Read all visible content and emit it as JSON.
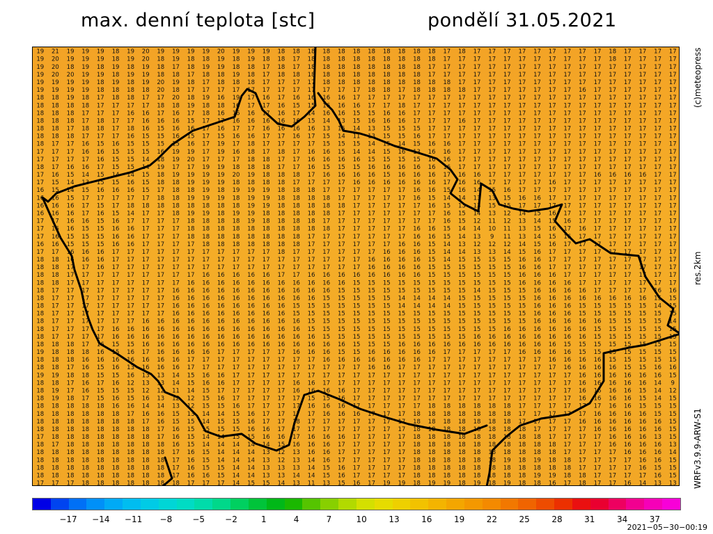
{
  "header": {
    "title": "max. denní teplota [stc]",
    "date": "pondělí 31.05.2021"
  },
  "side_labels": {
    "copyright": "(c)meteopress",
    "resolution": "res.2km",
    "model": "WRFv3.9.9-ARW-S1"
  },
  "map": {
    "region": "Czech Republic",
    "background_color": "#f3a727",
    "value_grid_rows": [
      "19 21 19 19 19 18 19 20 19 19 19 19 20 19 19 19 18 18 18 18 18 18 18 18 18 18 18 17 18 17 17 17 17 17 17 17 17 17 18 17 17 17 17",
      "19 20 19 19 19 18 19 20 18 19 18 18 19 18 19 18 18 17 18 18 18 18 18 18 18 18 18 17 17 17 17 17 17 17 17 17 17 17 18 17 17 17 17",
      "19 20 18 19 18 19 18 19 18 17 18 19 19 18 18 17 18 17 18 18 18 18 18 18 18 18 17 17 17 17 17 17 17 17 17 17 17 17 17 17 17 17 17",
      "19 20 20 19 19 18 19 19 18 18 17 18 18 19 18 17 18 18 18 18 18 18 18 18 18 18 17 17 17 17 17 17 17 17 17 17 17 17 17 17 17 17 17",
      "19 19 19 19 18 19 18 19 20 19 18 17 18 18 18 17 17 17 17 18 18 18 18 18 18 18 18 18 17 17 17 17 17 17 17 17 17 17 17 17 17 17 17",
      "19 19 19 19 18 18 18 18 20 18 17 17 17 17 17 17 17 17 17 17 17 17 18 18 17 18 18 18 18 17 17 17 17 17 17 17 16 17 17 17 17 17 17",
      "18 18 19 18 17 18 18 17 17 20 18 19 16 19 17 16 17 16 16 16 16 17 17 17 17 17 17 17 17 17 17 17 17 17 17 17 17 17 17 17 17 17 17",
      "18 18 18 18 17 17 17 17 18 18 19 18 18 16 17 17 16 15 15 16 16 16 17 17 18 17 17 17 17 17 17 17 17 17 17 17 17 17 17 17 17 17 17",
      "18 18 18 17 17 17 16 16 17 16 17 18 16 16 16 17 16 17 14 16 16 15 15 16 16 17 17 17 17 17 17 17 17 17 17 17 17 17 17 17 17 17 17",
      "18 18 18 17 18 17 17 16 16 16 15 17 17 16 16 16 16 16 15 14 13 15 16 16 16 17 17 17 16 17 17 17 17 17 17 17 17 17 17 17 17 17 17",
      "18 18 17 18 18 17 18 16 15 16 16 17 16 17 17 16 16 16 16 13 15 14 13 15 15 15 17 17 17 17 17 17 17 17 17 17 17 17 17 17 17 17 17",
      "18 18 18 17 17 17 16 15 15 16 15 17 15 16 16 17 17 16 17 15 14 11 13 15 15 16 17 17 17 17 17 17 17 17 17 17 17 17 17 17 17 17 17",
      "18 17 17 16 15 16 15 15 15 15 16 17 19 17 18 17 17 17 17 15 15 15 14 15 14 15 16 16 17 17 17 17 17 17 17 17 17 17 17 17 17 17 17",
      "17 17 17 16 16 15 15 15 16 19 19 17 19 16 18 17 18 17 16 16 15 14 14 15 16 13 16 16 17 17 17 17 17 17 17 17 17 17 17 17 17 17 17",
      "17 17 17 17 16 15 15 14 18 19 20 17 17 17 18 18 17 17 16 16 16 16 15 15 15 15 16 16 17 17 17 17 17 17 17 17 17 17 17 17 17 17 17",
      "18 17 16 16 17 15 15 14 19 17 17 19 19 18 18 18 17 17 16 15 15 15 16 16 16 16 16 16 17 17 17 17 17 17 17 17 17 17 17 17 17 17 17",
      "17 16 15 14 15 14 14 15 18 19 19 19 19 20 19 18 18 18 17 16 16 16 16 15 16 16 16 17 16 16 17 17 17 17 17 17 17 16 16 16 16 17 17",
      "17 15 14 13 15 15 16 15 18 18 19 19 19 18 18 18 18 17 17 17 17 16 16 16 16 16 16 17 16 16 17 17 17 17 16 17 17 17 17 17 17 17 17",
      "16 15 14 15 16 16 16 15 17 18 18 19 18 19 19 19 18 18 18 17 17 17 17 17 17 16 16 15 16 14 15 16 17 17 17 17 17 17 17 17 17 17 17",
      "16 16 15 17 17 17 17 17 18 18 19 19 19 18 19 19 18 18 18 18 17 17 17 17 17 16 15 14 14 13 13 15 16 16 17 17 17 17 17 17 17 17 17",
      "16 16 16 17 15 17 18 18 18 18 18 18 18 18 19 19 18 18 18 18 18 17 17 17 17 17 16 15 13 13 15 15 17 17 17 17 17 17 17 17 17 17 17",
      "16 16 16 17 16 15 14 17 17 18 19 19 18 19 19 18 18 18 18 18 17 17 17 17 17 17 17 16 15 14 13 12 14 15 16 17 17 17 17 17 17 17 17",
      "17 17 16 16 15 16 17 17 17 17 18 18 18 18 19 18 18 18 18 17 17 17 17 17 17 17 17 16 15 12 11 12 13 14 15 16 17 17 17 17 17 17 17",
      "17 16 16 15 15 16 16 17 17 17 18 18 18 18 18 18 18 18 18 18 17 17 17 17 17 16 16 15 14 14 10 11 13 15 16 17 16 17 17 17 17 17 17",
      "17 16 15 15 15 16 16 17 17 17 18 18 18 18 18 18 18 18 17 17 17 17 17 17 17 16 16 15 14 13 9 11 13 14 15 16 17 17 17 17 17 17 17",
      "16 16 15 15 15 16 16 17 17 17 17 18 18 18 18 18 18 18 17 17 17 17 17 17 16 16 15 14 13 12 12 12 14 15 16 17 17 17 17 17 17 17 17",
      "17 17 16 16 16 17 17 17 17 17 17 17 17 17 17 17 18 17 17 17 17 17 17 16 16 16 15 14 14 13 13 14 15 16 17 17 17 17 17 17 17 17 17",
      "18 18 16 16 16 17 17 17 17 17 17 17 17 17 17 17 17 17 17 17 17 17 16 16 16 16 15 14 15 15 15 15 16 16 17 17 17 17 17 17 17 17 17",
      "18 18 17 17 16 17 17 17 17 17 17 17 17 17 17 17 17 17 17 17 17 17 16 16 16 16 15 15 15 15 15 15 16 16 17 17 17 17 17 17 17 17 17",
      "18 18 17 17 17 17 17 17 17 17 17 16 16 16 16 16 17 17 16 16 16 16 16 16 16 16 15 15 15 15 15 15 16 16 16 17 17 17 17 17 17 17 17",
      "18 18 17 17 17 17 17 17 17 17 16 16 16 16 16 16 16 16 16 16 16 15 15 15 15 15 15 15 15 15 15 15 16 16 16 16 17 17 17 17 17 17 17",
      "18 17 17 17 17 17 17 17 17 16 16 16 16 16 16 16 16 16 16 16 15 15 15 15 15 15 15 15 15 14 15 15 15 16 16 16 16 17 17 17 17 16 16",
      "18 17 17 17 17 17 17 17 17 16 16 16 16 16 16 16 16 16 16 15 15 15 15 15 14 14 14 14 15 15 15 15 15 16 16 16 16 16 16 16 16 15 15",
      "18 17 17 17 17 17 17 17 17 16 16 16 16 16 16 16 16 15 15 15 15 15 15 15 14 14 14 14 15 15 15 15 15 16 16 16 15 15 15 15 15 14 15",
      "18 17 17 17 17 17 17 17 17 16 16 16 16 16 16 16 16 15 15 15 15 15 15 15 15 15 15 15 15 15 15 15 15 16 16 16 15 15 15 15 15 15 15",
      "18 17 17 17 17 17 17 16 16 16 16 16 16 16 16 16 16 16 15 15 15 15 15 15 15 15 15 15 15 15 15 15 15 16 16 16 16 16 15 15 15 15 14",
      "18 17 17 17 17 16 16 16 16 16 16 16 16 16 16 16 16 16 15 15 15 15 15 15 15 15 15 15 15 15 15 16 16 16 16 16 16 15 15 15 15 15 15",
      "18 17 17 17 17 16 16 16 16 16 16 16 16 16 16 16 16 16 16 15 15 15 15 15 15 15 15 15 15 16 16 16 16 16 16 16 16 15 15 15 15 15 15",
      "18 18 18 17 16 15 15 16 16 16 16 16 16 16 16 16 16 16 16 16 16 15 15 15 16 16 16 16 16 16 16 16 16 16 16 15 15 15 15 15 15 15 15",
      "19 18 18 18 16 15 16 17 16 16 16 16 17 17 17 17 17 16 16 16 15 15 16 16 16 16 16 17 17 17 17 17 16 16 16 16 15 15 15 15 15 15 15",
      "18 18 18 16 16 16 16 16 16 16 17 17 17 17 17 17 17 17 17 16 16 16 16 16 16 16 17 17 17 17 17 17 17 17 16 16 16 16 15 15 15 15 15",
      "18 18 17 16 15 16 13 16 16 16 17 17 17 17 17 17 17 17 17 17 17 17 16 16 17 17 17 17 17 17 17 17 17 17 17 16 16 16 16 15 15 16 16",
      "19 19 18 18 15 15 16 13 13 14 15 16 16 17 17 17 17 17 17 17 17 17 17 17 17 17 17 17 17 17 17 17 17 17 17 17 16 16 16 16 16 16 15",
      "18 18 17 16 17 16 12 13 13 14 15 16 16 17 17 17 17 16 16 17 17 17 17 17 17 17 17 17 17 17 17 17 17 17 17 17 16 16 16 16 16 14 9",
      "18 19 17 16 15 15 15 12 12 11 14 15 17 17 17 17 17 16 16 16 16 17 17 17 17 17 17 17 17 17 17 17 17 17 17 17 16 16 16 16 15 14 12",
      "18 19 18 17 15 16 15 16 13 12 12 15 16 17 17 17 17 17 15 15 16 17 17 17 17 17 17 17 17 17 17 17 17 17 17 17 16 16 16 16 15 14 15",
      "18 18 18 18 18 16 16 14 14 13 12 15 15 16 17 17 17 17 16 16 16 17 17 17 17 17 18 18 18 18 18 18 17 17 17 17 17 17 16 16 15 15 15",
      "18 18 18 18 18 18 17 16 16 15 13 14 14 15 16 17 17 17 17 16 16 16 17 17 17 18 18 18 18 18 18 18 17 17 17 17 17 16 16 16 16 15 15",
      "18 18 18 18 18 18 18 17 16 15 15 14 15 15 16 17 17 18 17 17 17 17 17 17 17 18 18 18 18 18 18 18 17 17 17 17 16 16 16 16 16 16 15",
      "18 18 18 18 18 18 18 18 17 16 15 15 15 15 16 16 17 17 17 17 17 17 17 17 17 18 18 18 18 18 18 18 18 17 17 17 17 16 16 16 16 16 15",
      "17 18 18 18 18 18 18 18 17 16 15 14 14 15 15 16 16 17 16 16 16 17 17 17 17 18 18 18 18 18 18 18 18 18 17 17 17 17 16 16 16 13 15",
      "18 17 18 18 18 18 18 18 18 16 15 14 14 14 14 14 15 16 16 16 17 17 17 17 17 18 18 18 18 18 18 18 18 18 18 17 17 17 16 16 16 16 13",
      "18 18 18 18 18 18 18 18 18 17 16 15 14 14 14 13 12 13 16 16 17 17 17 17 17 18 18 18 18 18 18 18 18 18 18 17 17 17 17 16 16 16 14",
      "18 18 18 18 18 18 18 18 18 17 16 15 14 14 14 13 12 13 14 16 17 17 17 17 17 18 18 18 18 18 18 19 18 19 18 18 17 17 17 17 16 16 15",
      "18 18 18 18 18 18 18 18 18 17 16 15 15 14 14 13 13 13 14 15 16 17 17 17 17 18 18 18 18 18 18 18 18 18 18 18 17 17 17 17 16 15 15",
      "18 18 18 18 18 18 18 18 18 17 16 16 15 14 14 13 13 14 14 15 16 17 17 17 17 18 18 18 18 18 18 18 18 19 19 18 18 17 17 17 17 16 15",
      "17 17 17 18 18 18 18 18 18 18 17 17 17 14 15 15 14 13 11 13 15 16 17 19 19 18 19 19 18 19 18 19 18 18 16 17 18 17 17 16 14 13 13"
    ],
    "border_color": "#000000"
  },
  "colorbar": {
    "colors": [
      "#0000e6",
      "#0044f0",
      "#0070f6",
      "#0090f8",
      "#00aaf6",
      "#00bdf0",
      "#00cbe6",
      "#00d6d6",
      "#00dcc4",
      "#00dcaa",
      "#00d88a",
      "#00d060",
      "#00c43a",
      "#00b818",
      "#1ab800",
      "#55c400",
      "#88d000",
      "#b2da00",
      "#d4e000",
      "#e6dc00",
      "#eed000",
      "#f2c200",
      "#f4b400",
      "#f4a600",
      "#f49800",
      "#f48a00",
      "#f27800",
      "#f06400",
      "#ee4c00",
      "#ec3000",
      "#ea1010",
      "#ea0030",
      "#ee0060",
      "#f20090",
      "#f600b8",
      "#f800d8"
    ],
    "tick_labels": [
      "−17",
      "−14",
      "−11",
      "−8",
      "−5",
      "−2",
      "1",
      "4",
      "7",
      "10",
      "13",
      "16",
      "19",
      "22",
      "25",
      "28",
      "31",
      "34",
      "37"
    ]
  },
  "footer": {
    "timestamp": "2021−05−30−00:19"
  }
}
